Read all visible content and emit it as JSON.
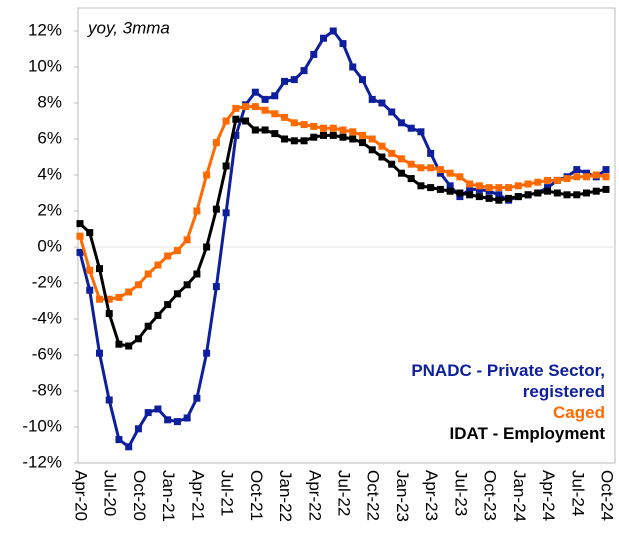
{
  "chart_data": {
    "type": "line",
    "annotation": "yoy, 3mma",
    "categories": [
      "Apr-20",
      null,
      null,
      "Jul-20",
      null,
      null,
      "Oct-20",
      null,
      null,
      "Jan-21",
      null,
      null,
      "Apr-21",
      null,
      null,
      "Jul-21",
      null,
      null,
      "Oct-21",
      null,
      null,
      "Jan-22",
      null,
      null,
      "Apr-22",
      null,
      null,
      "Jul-22",
      null,
      null,
      "Oct-22",
      null,
      null,
      "Jan-23",
      null,
      null,
      "Apr-23",
      null,
      null,
      "Jul-23",
      null,
      null,
      "Oct-23",
      null,
      null,
      "Jan-24",
      null,
      null,
      "Apr-24",
      null,
      null,
      "Jul-24",
      null,
      null,
      "Oct-24"
    ],
    "series": [
      {
        "name": "PNADC - Private Sector, registered",
        "color": "#0d1f9c",
        "values": [
          -0.3,
          -2.4,
          -5.9,
          -8.5,
          -10.7,
          -11.1,
          -10.1,
          -9.2,
          -9.0,
          -9.6,
          -9.7,
          -9.5,
          -8.4,
          -5.9,
          -2.2,
          1.9,
          6.2,
          7.9,
          8.6,
          8.2,
          8.4,
          9.2,
          9.3,
          9.8,
          10.7,
          11.6,
          12.0,
          11.3,
          10.0,
          9.3,
          8.2,
          8.0,
          7.5,
          6.9,
          6.6,
          6.4,
          5.2,
          4.1,
          3.4,
          2.8,
          3.2,
          3.2,
          3.1,
          2.9,
          2.6,
          2.8,
          2.9,
          3.0,
          3.3,
          3.7,
          3.9,
          4.3,
          4.1,
          3.9,
          4.3
        ]
      },
      {
        "name": "Caged",
        "color": "#ff6a00",
        "values": [
          0.6,
          -1.3,
          -2.9,
          -2.9,
          -2.8,
          -2.5,
          -2.1,
          -1.5,
          -1.0,
          -0.5,
          -0.2,
          0.4,
          2.0,
          4.0,
          5.8,
          7.0,
          7.7,
          7.8,
          7.8,
          7.6,
          7.4,
          7.2,
          6.9,
          6.8,
          6.7,
          6.6,
          6.6,
          6.5,
          6.4,
          6.2,
          6.0,
          5.6,
          5.2,
          4.9,
          4.6,
          4.4,
          4.4,
          4.3,
          4.1,
          3.9,
          3.5,
          3.4,
          3.3,
          3.3,
          3.3,
          3.4,
          3.5,
          3.6,
          3.7,
          3.7,
          3.8,
          3.9,
          3.9,
          4.0,
          3.9
        ]
      },
      {
        "name": "IDAT - Employment",
        "color": "#000000",
        "values": [
          1.3,
          0.8,
          -1.2,
          -3.7,
          -5.4,
          -5.5,
          -5.1,
          -4.4,
          -3.8,
          -3.2,
          -2.6,
          -2.1,
          -1.5,
          0.0,
          2.1,
          4.5,
          7.1,
          7.0,
          6.5,
          6.5,
          6.3,
          6.0,
          5.9,
          5.9,
          6.1,
          6.2,
          6.2,
          6.1,
          6.0,
          5.8,
          5.4,
          5.0,
          4.6,
          4.1,
          3.8,
          3.4,
          3.3,
          3.2,
          3.1,
          3.0,
          2.9,
          2.8,
          2.7,
          2.6,
          2.7,
          2.8,
          2.9,
          3.0,
          3.1,
          3.0,
          2.9,
          2.9,
          3.0,
          3.1,
          3.2
        ]
      }
    ],
    "ylim": [
      -12,
      12
    ],
    "yticks": [
      {
        "value": -12,
        "label": "-12%"
      },
      {
        "value": -10,
        "label": "-10%"
      },
      {
        "value": -8,
        "label": "-8%"
      },
      {
        "value": -6,
        "label": "-6%"
      },
      {
        "value": -4,
        "label": "-4%"
      },
      {
        "value": -2,
        "label": "-2%"
      },
      {
        "value": 0,
        "label": "0%"
      },
      {
        "value": 2,
        "label": "2%"
      },
      {
        "value": 4,
        "label": "4%"
      },
      {
        "value": 6,
        "label": "6%"
      },
      {
        "value": 8,
        "label": "8%"
      },
      {
        "value": 10,
        "label": "10%"
      },
      {
        "value": 12,
        "label": "12%"
      }
    ],
    "grid": false,
    "legend": "lower right"
  }
}
